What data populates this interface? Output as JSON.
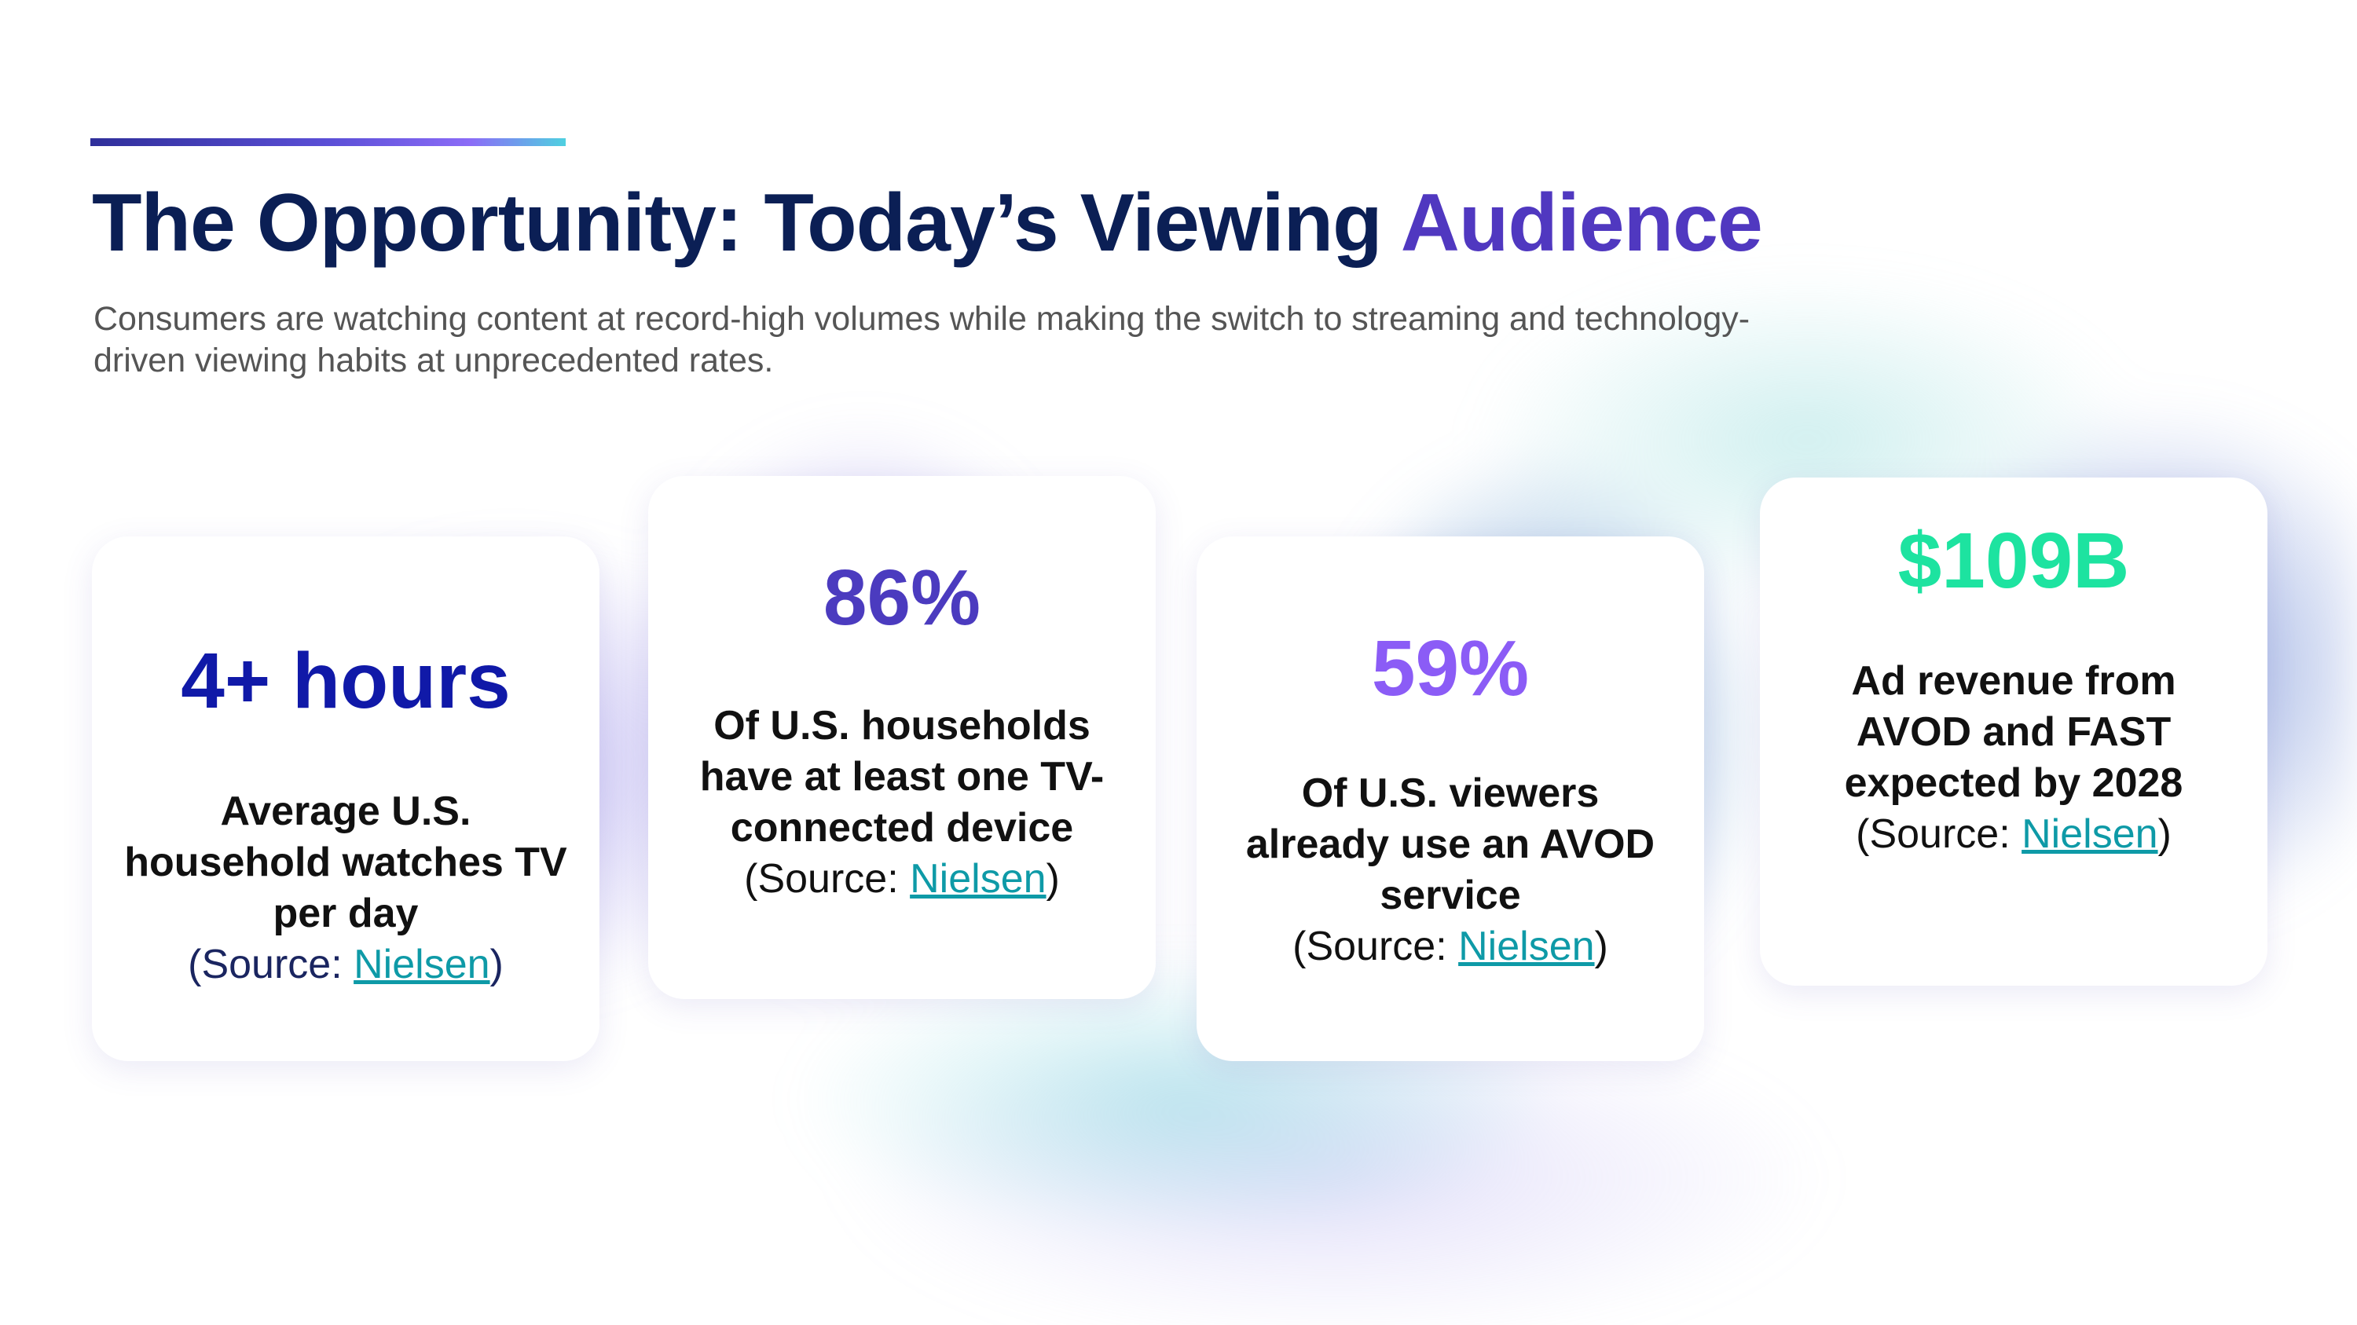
{
  "header": {
    "title_main": "The Opportunity: Today’s Viewing",
    "title_highlight": "Audience",
    "subtitle": "Consumers are watching content at record-high volumes while making the switch to streaming and technology-driven viewing habits at unprecedented rates."
  },
  "cards": [
    {
      "stat": "4+ hours",
      "description": "Average U.S. household watches TV per day",
      "source_prefix": "(Source: ",
      "source_link": "Nielsen",
      "source_suffix": ")",
      "color": "#1019a8"
    },
    {
      "stat": "86%",
      "description": "Of U.S. households have at least one TV-connected device",
      "source_prefix": "(Source: ",
      "source_link": "Nielsen",
      "source_suffix": ")",
      "color": "#4b3bbf"
    },
    {
      "stat": "59%",
      "description": "Of U.S. viewers already use an AVOD service",
      "source_prefix": "(Source: ",
      "source_link": "Nielsen",
      "source_suffix": ")",
      "color": "#8b5cf6"
    },
    {
      "stat": "$109B",
      "description": "Ad revenue from AVOD and FAST expected by 2028",
      "source_prefix": "(Source: ",
      "source_link": "Nielsen",
      "source_suffix": ")",
      "color": "#1de3a0"
    }
  ]
}
